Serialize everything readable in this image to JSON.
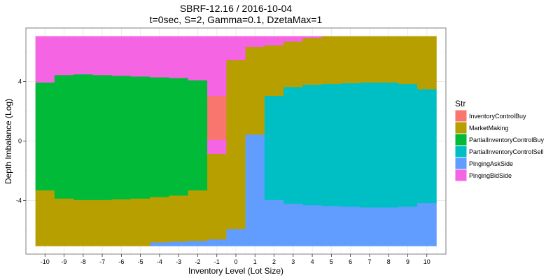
{
  "chart_data": {
    "type": "heatmap",
    "title_line1": "SBRF-12.16 / 2016-10-04",
    "title_line2": "t=0sec, S=2, Gamma=0.1, DzetaMax=1",
    "xlabel": "Inventory Level (Lot Size)",
    "ylabel": "Depth Imbalance (Log)",
    "x_ticks": [
      -10,
      -9,
      -8,
      -7,
      -6,
      -5,
      -4,
      -3,
      -2,
      -1,
      0,
      1,
      2,
      3,
      4,
      5,
      6,
      7,
      8,
      9,
      10
    ],
    "y_ticks": [
      -4,
      0,
      4
    ],
    "xlim": [
      -11,
      11
    ],
    "ylim": [
      -7.6,
      7.6
    ],
    "y_min": -7.05,
    "y_max": 7.05,
    "grid": true,
    "legend_position": "right",
    "legend_title": "Str",
    "legend": [
      {
        "name": "InventoryControlBuy",
        "color": "#F8766D"
      },
      {
        "name": "MarketMaking",
        "color": "#B79F00"
      },
      {
        "name": "PartialInventoryControlBuy",
        "color": "#00BA38"
      },
      {
        "name": "PartialInventoryControlSell",
        "color": "#00BFC4"
      },
      {
        "name": "PingingAskSide",
        "color": "#619CFF"
      },
      {
        "name": "PingingBidSide",
        "color": "#F564E3"
      }
    ],
    "columns": [
      {
        "x": -10,
        "segments": [
          {
            "s": "MarketMaking",
            "lo": -7.05,
            "hi": -3.3
          },
          {
            "s": "PartialInventoryControlBuy",
            "lo": -3.3,
            "hi": 3.95
          },
          {
            "s": "PingingBidSide",
            "lo": 3.95,
            "hi": 7.05
          }
        ]
      },
      {
        "x": -9,
        "segments": [
          {
            "s": "MarketMaking",
            "lo": -7.05,
            "hi": -3.85
          },
          {
            "s": "PartialInventoryControlBuy",
            "lo": -3.85,
            "hi": 4.45
          },
          {
            "s": "PingingBidSide",
            "lo": 4.45,
            "hi": 7.05
          }
        ]
      },
      {
        "x": -8,
        "segments": [
          {
            "s": "MarketMaking",
            "lo": -7.05,
            "hi": -3.95
          },
          {
            "s": "PartialInventoryControlBuy",
            "lo": -3.95,
            "hi": 4.5
          },
          {
            "s": "PingingBidSide",
            "lo": 4.5,
            "hi": 7.05
          }
        ]
      },
      {
        "x": -7,
        "segments": [
          {
            "s": "MarketMaking",
            "lo": -7.05,
            "hi": -3.95
          },
          {
            "s": "PartialInventoryControlBuy",
            "lo": -3.95,
            "hi": 4.45
          },
          {
            "s": "PingingBidSide",
            "lo": 4.45,
            "hi": 7.05
          }
        ]
      },
      {
        "x": -6,
        "segments": [
          {
            "s": "MarketMaking",
            "lo": -7.05,
            "hi": -3.9
          },
          {
            "s": "PartialInventoryControlBuy",
            "lo": -3.9,
            "hi": 4.4
          },
          {
            "s": "PingingBidSide",
            "lo": 4.4,
            "hi": 7.05
          }
        ]
      },
      {
        "x": -5,
        "segments": [
          {
            "s": "MarketMaking",
            "lo": -7.05,
            "hi": -3.85
          },
          {
            "s": "PartialInventoryControlBuy",
            "lo": -3.85,
            "hi": 4.35
          },
          {
            "s": "PingingBidSide",
            "lo": 4.35,
            "hi": 7.05
          }
        ]
      },
      {
        "x": -4,
        "segments": [
          {
            "s": "PingingAskSide",
            "lo": -7.05,
            "hi": -6.8
          },
          {
            "s": "MarketMaking",
            "lo": -6.8,
            "hi": -3.75
          },
          {
            "s": "PartialInventoryControlBuy",
            "lo": -3.75,
            "hi": 4.3
          },
          {
            "s": "PingingBidSide",
            "lo": 4.3,
            "hi": 7.05
          }
        ]
      },
      {
        "x": -3,
        "segments": [
          {
            "s": "PingingAskSide",
            "lo": -7.05,
            "hi": -6.75
          },
          {
            "s": "MarketMaking",
            "lo": -6.75,
            "hi": -3.65
          },
          {
            "s": "PartialInventoryControlBuy",
            "lo": -3.65,
            "hi": 4.25
          },
          {
            "s": "PingingBidSide",
            "lo": 4.25,
            "hi": 7.05
          }
        ]
      },
      {
        "x": -2,
        "segments": [
          {
            "s": "PingingAskSide",
            "lo": -7.05,
            "hi": -6.7
          },
          {
            "s": "MarketMaking",
            "lo": -6.7,
            "hi": -3.3
          },
          {
            "s": "PartialInventoryControlBuy",
            "lo": -3.3,
            "hi": 4.1
          },
          {
            "s": "PingingBidSide",
            "lo": 4.1,
            "hi": 7.05
          }
        ]
      },
      {
        "x": -1,
        "segments": [
          {
            "s": "PingingAskSide",
            "lo": -7.05,
            "hi": -6.6
          },
          {
            "s": "MarketMaking",
            "lo": -6.6,
            "hi": -0.85
          },
          {
            "s": "PingingBidSide",
            "lo": -0.85,
            "hi": 0.1
          },
          {
            "s": "InventoryControlBuy",
            "lo": 0.1,
            "hi": 3.05
          },
          {
            "s": "PingingBidSide",
            "lo": 3.05,
            "hi": 7.05
          }
        ]
      },
      {
        "x": 0,
        "segments": [
          {
            "s": "PingingAskSide",
            "lo": -7.05,
            "hi": -5.9
          },
          {
            "s": "MarketMaking",
            "lo": -5.9,
            "hi": 5.45
          },
          {
            "s": "PingingBidSide",
            "lo": 5.45,
            "hi": 7.05
          }
        ]
      },
      {
        "x": 1,
        "segments": [
          {
            "s": "PingingAskSide",
            "lo": -7.05,
            "hi": 0.45
          },
          {
            "s": "MarketMaking",
            "lo": 0.45,
            "hi": 6.35
          },
          {
            "s": "PingingBidSide",
            "lo": 6.35,
            "hi": 7.05
          }
        ]
      },
      {
        "x": 2,
        "segments": [
          {
            "s": "PingingAskSide",
            "lo": -7.05,
            "hi": -3.95
          },
          {
            "s": "PartialInventoryControlSell",
            "lo": -3.95,
            "hi": 3.05
          },
          {
            "s": "MarketMaking",
            "lo": 3.05,
            "hi": 6.45
          },
          {
            "s": "PingingBidSide",
            "lo": 6.45,
            "hi": 7.05
          }
        ]
      },
      {
        "x": 3,
        "segments": [
          {
            "s": "PingingAskSide",
            "lo": -7.05,
            "hi": -4.2
          },
          {
            "s": "PartialInventoryControlSell",
            "lo": -4.2,
            "hi": 3.65
          },
          {
            "s": "MarketMaking",
            "lo": 3.65,
            "hi": 6.7
          },
          {
            "s": "PingingBidSide",
            "lo": 6.7,
            "hi": 7.05
          }
        ]
      },
      {
        "x": 4,
        "segments": [
          {
            "s": "PingingAskSide",
            "lo": -7.05,
            "hi": -4.3
          },
          {
            "s": "PartialInventoryControlSell",
            "lo": -4.3,
            "hi": 3.8
          },
          {
            "s": "MarketMaking",
            "lo": 3.8,
            "hi": 6.95
          },
          {
            "s": "PingingBidSide",
            "lo": 6.95,
            "hi": 7.05
          }
        ]
      },
      {
        "x": 5,
        "segments": [
          {
            "s": "PingingAskSide",
            "lo": -7.05,
            "hi": -4.35
          },
          {
            "s": "PartialInventoryControlSell",
            "lo": -4.35,
            "hi": 3.85
          },
          {
            "s": "MarketMaking",
            "lo": 3.85,
            "hi": 7.05
          }
        ]
      },
      {
        "x": 6,
        "segments": [
          {
            "s": "PingingAskSide",
            "lo": -7.05,
            "hi": -4.4
          },
          {
            "s": "PartialInventoryControlSell",
            "lo": -4.4,
            "hi": 3.9
          },
          {
            "s": "MarketMaking",
            "lo": 3.9,
            "hi": 7.05
          }
        ]
      },
      {
        "x": 7,
        "segments": [
          {
            "s": "PingingAskSide",
            "lo": -7.05,
            "hi": -4.45
          },
          {
            "s": "PartialInventoryControlSell",
            "lo": -4.45,
            "hi": 3.95
          },
          {
            "s": "MarketMaking",
            "lo": 3.95,
            "hi": 7.05
          }
        ]
      },
      {
        "x": 8,
        "segments": [
          {
            "s": "PingingAskSide",
            "lo": -7.05,
            "hi": -4.45
          },
          {
            "s": "PartialInventoryControlSell",
            "lo": -4.45,
            "hi": 3.95
          },
          {
            "s": "MarketMaking",
            "lo": 3.95,
            "hi": 7.05
          }
        ]
      },
      {
        "x": 9,
        "segments": [
          {
            "s": "PingingAskSide",
            "lo": -7.05,
            "hi": -4.4
          },
          {
            "s": "PartialInventoryControlSell",
            "lo": -4.4,
            "hi": 3.85
          },
          {
            "s": "MarketMaking",
            "lo": 3.85,
            "hi": 7.05
          }
        ]
      },
      {
        "x": 10,
        "segments": [
          {
            "s": "PingingAskSide",
            "lo": -7.05,
            "hi": -4.15
          },
          {
            "s": "PartialInventoryControlSell",
            "lo": -4.15,
            "hi": 3.5
          },
          {
            "s": "MarketMaking",
            "lo": 3.5,
            "hi": 7.05
          }
        ]
      }
    ]
  }
}
